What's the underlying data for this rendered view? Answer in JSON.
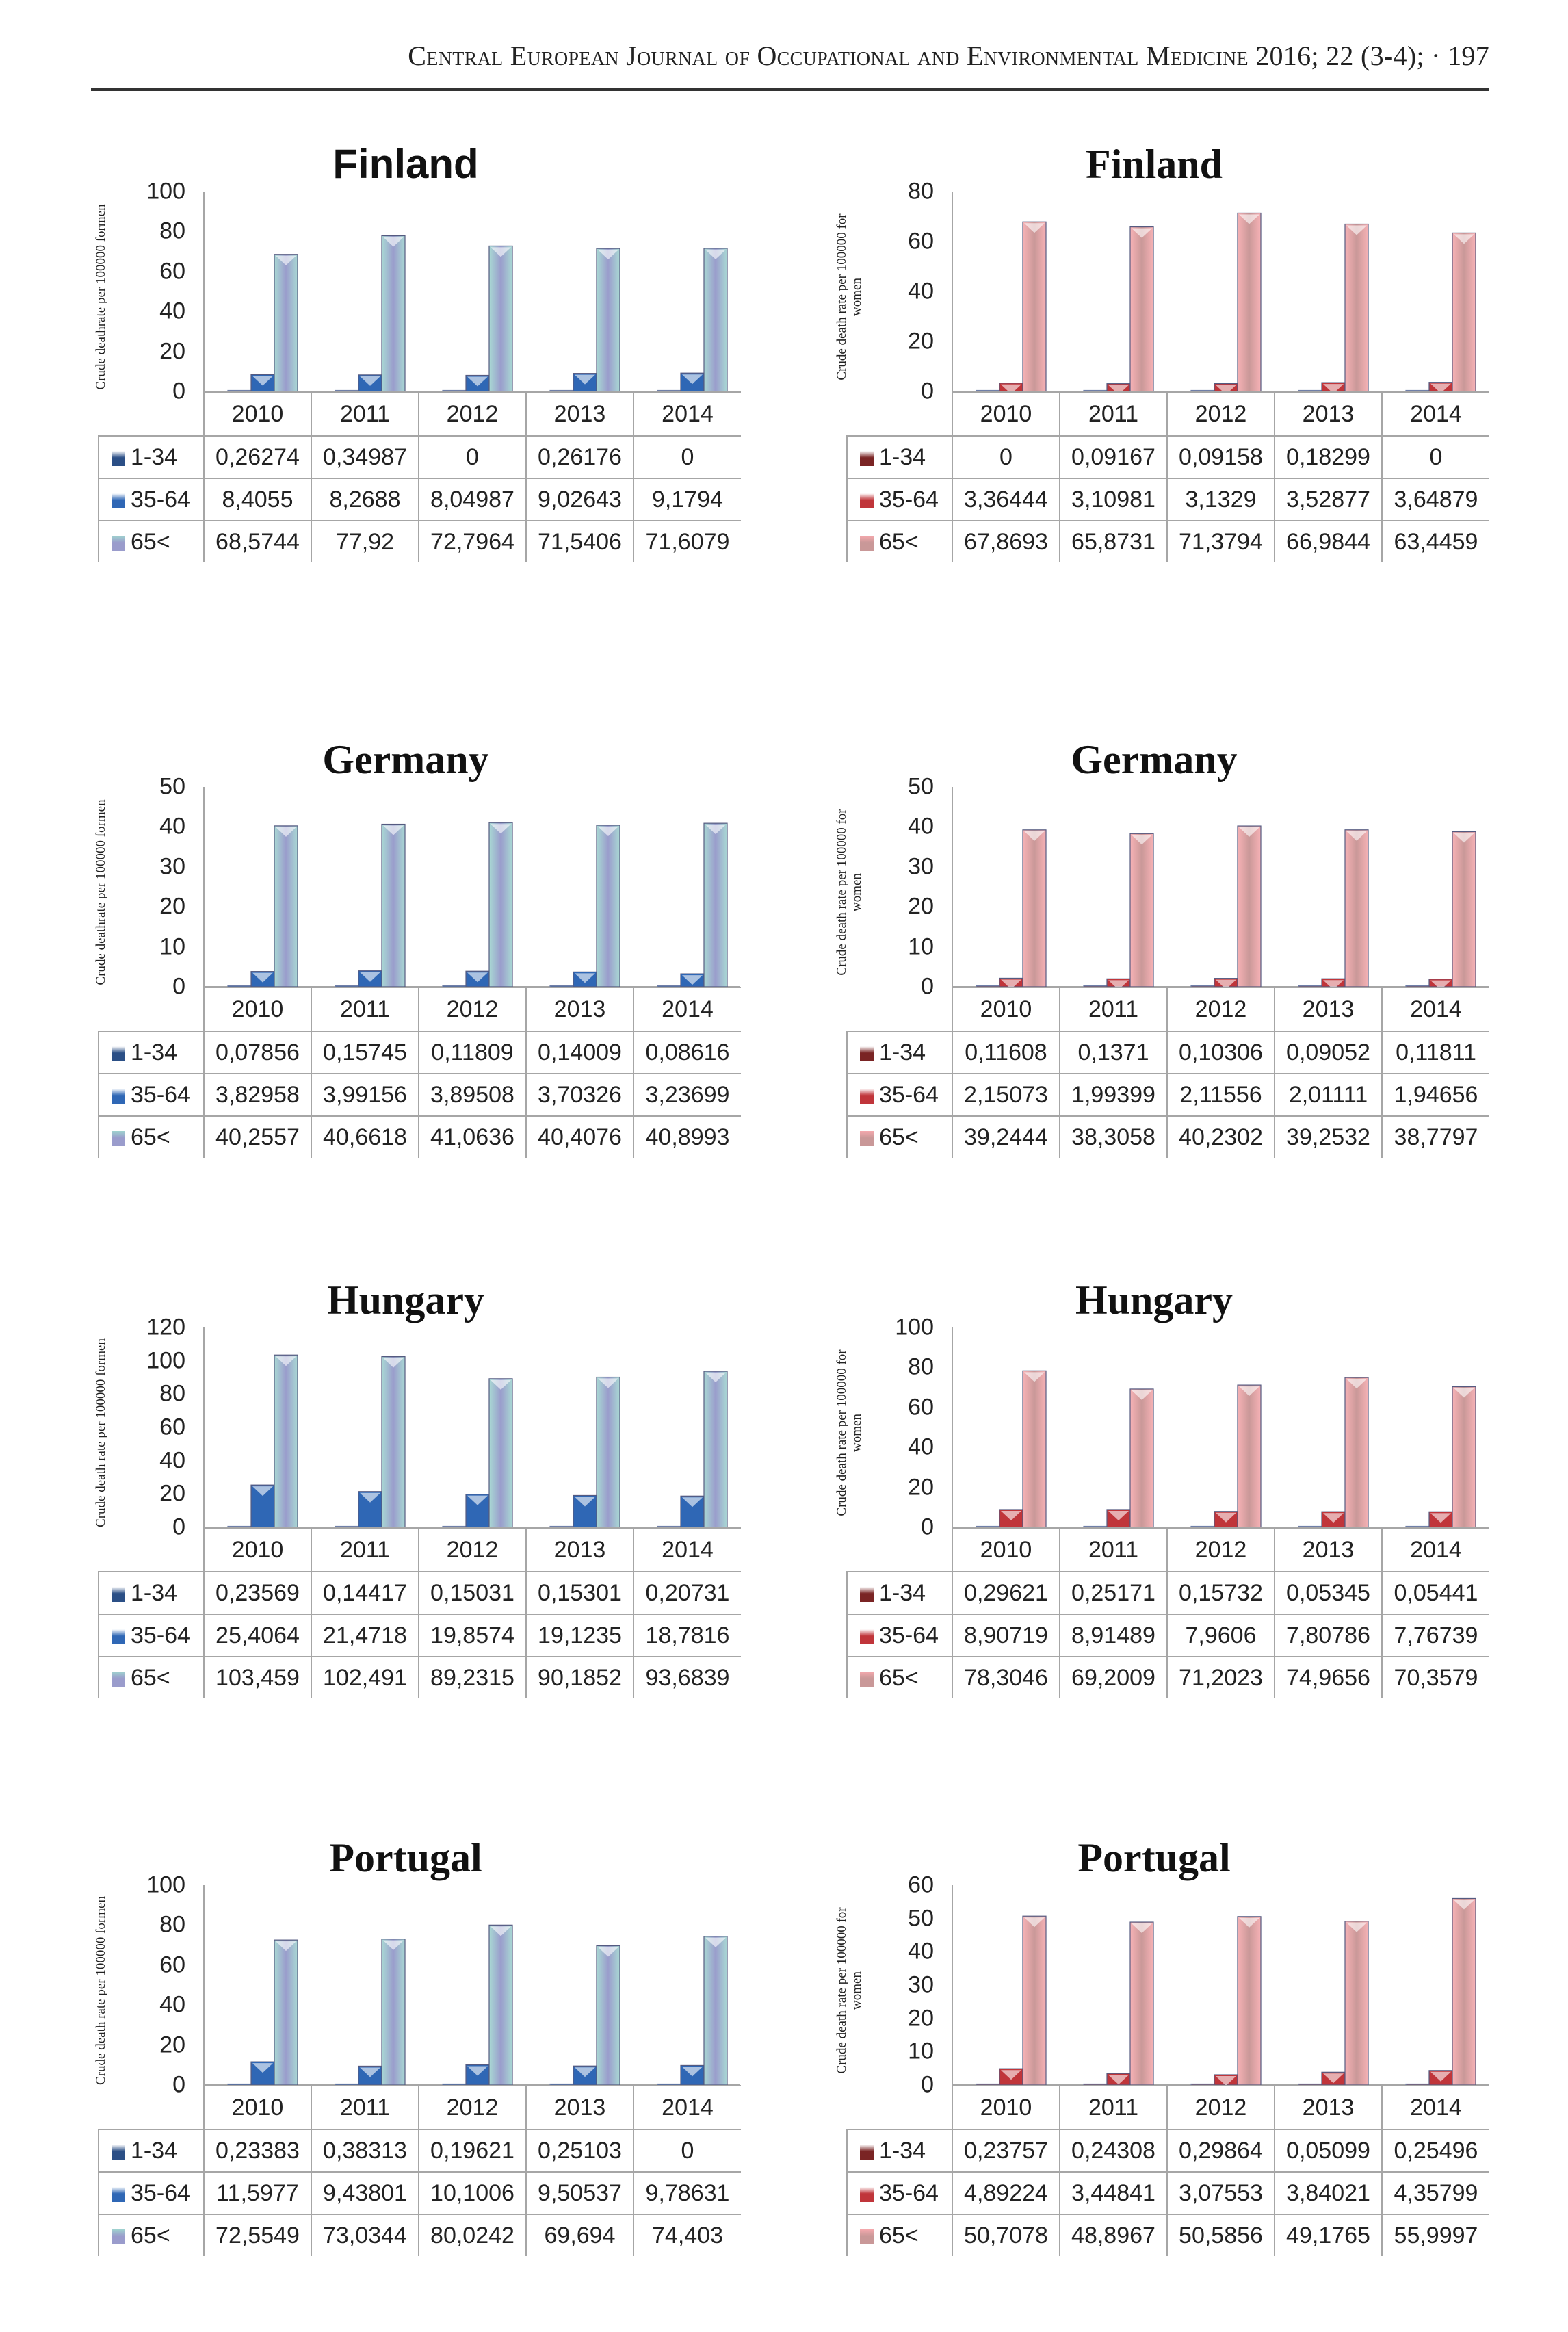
{
  "header": {
    "running_title": "Central European Journal of Occupational and Environmental Medicine 2016; 22 (3-4); · 197"
  },
  "colors": {
    "men_1_34": "#2b4f86",
    "men_35_64": "#2f67b5",
    "men_65": "#9a9ccc",
    "men_65_highlight": "#9fd3cf",
    "women_1_34": "#7a2424",
    "women_35_64": "#c0353a",
    "women_65": "#c99898",
    "women_65_highlight": "#f5a9ad"
  },
  "chart_data": [
    {
      "type": "bar",
      "title": "Finland",
      "xlabel": "",
      "ylabel": "Crude deathrate per 100000 formen",
      "ylim": [
        0,
        100
      ],
      "yticks": [
        0,
        20,
        40,
        60,
        80,
        100
      ],
      "grid": false,
      "legend": "table-bottom",
      "categories": [
        "2010",
        "2011",
        "2012",
        "2013",
        "2014"
      ],
      "palette": "men",
      "series": [
        {
          "name": "1-34",
          "values": [
            0.26274,
            0.34987,
            0,
            0.26176,
            0
          ],
          "labels": [
            "0,26274",
            "0,34987",
            "0",
            "0,26176",
            "0"
          ]
        },
        {
          "name": "35-64",
          "values": [
            8.4055,
            8.2688,
            8.04987,
            9.02643,
            9.1794
          ],
          "labels": [
            "8,4055",
            "8,2688",
            "8,04987",
            "9,02643",
            "9,1794"
          ]
        },
        {
          "name": "65<",
          "values": [
            68.5744,
            77.92,
            72.7964,
            71.5406,
            71.6079
          ],
          "labels": [
            "68,5744",
            "77,92",
            "72,7964",
            "71,5406",
            "71,6079"
          ]
        }
      ]
    },
    {
      "type": "bar",
      "title": "Finland",
      "xlabel": "",
      "ylabel": "Crude death rate per 100000 for women",
      "ylim": [
        0,
        80
      ],
      "yticks": [
        0,
        20,
        40,
        60,
        80
      ],
      "grid": false,
      "legend": "table-bottom",
      "categories": [
        "2010",
        "2011",
        "2012",
        "2013",
        "2014"
      ],
      "palette": "women",
      "series": [
        {
          "name": "1-34",
          "values": [
            0,
            0.09167,
            0.09158,
            0.18299,
            0
          ],
          "labels": [
            "0",
            "0,09167",
            "0,09158",
            "0,18299",
            "0"
          ]
        },
        {
          "name": "35-64",
          "values": [
            3.36444,
            3.10981,
            3.1329,
            3.52877,
            3.64879
          ],
          "labels": [
            "3,36444",
            "3,10981",
            "3,1329",
            "3,52877",
            "3,64879"
          ]
        },
        {
          "name": "65<",
          "values": [
            67.8693,
            65.8731,
            71.3794,
            66.9844,
            63.4459
          ],
          "labels": [
            "67,8693",
            "65,8731",
            "71,3794",
            "66,9844",
            "63,4459"
          ]
        }
      ]
    },
    {
      "type": "bar",
      "title": "Germany",
      "xlabel": "",
      "ylabel": "Crude deathrate per 100000 formen",
      "ylim": [
        0,
        50
      ],
      "yticks": [
        0,
        10,
        20,
        30,
        40,
        50
      ],
      "grid": false,
      "legend": "table-bottom",
      "categories": [
        "2010",
        "2011",
        "2012",
        "2013",
        "2014"
      ],
      "palette": "men",
      "series": [
        {
          "name": "1-34",
          "values": [
            0.07856,
            0.15745,
            0.11809,
            0.14009,
            0.08616
          ],
          "labels": [
            "0,07856",
            "0,15745",
            "0,11809",
            "0,14009",
            "0,08616"
          ]
        },
        {
          "name": "35-64",
          "values": [
            3.82958,
            3.99156,
            3.89508,
            3.70326,
            3.23699
          ],
          "labels": [
            "3,82958",
            "3,99156",
            "3,89508",
            "3,70326",
            "3,23699"
          ]
        },
        {
          "name": "65<",
          "values": [
            40.2557,
            40.6618,
            41.0636,
            40.4076,
            40.8993
          ],
          "labels": [
            "40,2557",
            "40,6618",
            "41,0636",
            "40,4076",
            "40,8993"
          ]
        }
      ]
    },
    {
      "type": "bar",
      "title": "Germany",
      "xlabel": "",
      "ylabel": "Crude death rate per 100000 for women",
      "ylim": [
        0,
        50
      ],
      "yticks": [
        0,
        10,
        20,
        30,
        40,
        50
      ],
      "grid": false,
      "legend": "table-bottom",
      "categories": [
        "2010",
        "2011",
        "2012",
        "2013",
        "2014"
      ],
      "palette": "women",
      "series": [
        {
          "name": "1-34",
          "values": [
            0.11608,
            0.1371,
            0.10306,
            0.09052,
            0.11811
          ],
          "labels": [
            "0,11608",
            "0,1371",
            "0,10306",
            "0,09052",
            "0,11811"
          ]
        },
        {
          "name": "35-64",
          "values": [
            2.15073,
            1.99399,
            2.11556,
            2.01111,
            1.94656
          ],
          "labels": [
            "2,15073",
            "1,99399",
            "2,11556",
            "2,01111",
            "1,94656"
          ]
        },
        {
          "name": "65<",
          "values": [
            39.2444,
            38.3058,
            40.2302,
            39.2532,
            38.7797
          ],
          "labels": [
            "39,2444",
            "38,3058",
            "40,2302",
            "39,2532",
            "38,7797"
          ]
        }
      ]
    },
    {
      "type": "bar",
      "title": "Hungary",
      "xlabel": "",
      "ylabel": "Crude death rate per 100000 formen",
      "ylim": [
        0,
        120
      ],
      "yticks": [
        0,
        20,
        40,
        60,
        80,
        100,
        120
      ],
      "grid": false,
      "legend": "table-bottom",
      "categories": [
        "2010",
        "2011",
        "2012",
        "2013",
        "2014"
      ],
      "palette": "men",
      "series": [
        {
          "name": "1-34",
          "values": [
            0.23569,
            0.14417,
            0.15031,
            0.15301,
            0.20731
          ],
          "labels": [
            "0,23569",
            "0,14417",
            "0,15031",
            "0,15301",
            "0,20731"
          ]
        },
        {
          "name": "35-64",
          "values": [
            25.4064,
            21.4718,
            19.8574,
            19.1235,
            18.7816
          ],
          "labels": [
            "25,4064",
            "21,4718",
            "19,8574",
            "19,1235",
            "18,7816"
          ]
        },
        {
          "name": "65<",
          "values": [
            103.459,
            102.491,
            89.2315,
            90.1852,
            93.6839
          ],
          "labels": [
            "103,459",
            "102,491",
            "89,2315",
            "90,1852",
            "93,6839"
          ]
        }
      ]
    },
    {
      "type": "bar",
      "title": "Hungary",
      "xlabel": "",
      "ylabel": "Crude death rate per 100000 for women",
      "ylim": [
        0,
        100
      ],
      "yticks": [
        0,
        20,
        40,
        60,
        80,
        100
      ],
      "grid": false,
      "legend": "table-bottom",
      "categories": [
        "2010",
        "2011",
        "2012",
        "2013",
        "2014"
      ],
      "palette": "women",
      "series": [
        {
          "name": "1-34",
          "values": [
            0.29621,
            0.25171,
            0.15732,
            0.05345,
            0.05441
          ],
          "labels": [
            "0,29621",
            "0,25171",
            "0,15732",
            "0,05345",
            "0,05441"
          ]
        },
        {
          "name": "35-64",
          "values": [
            8.90719,
            8.91489,
            7.9606,
            7.80786,
            7.76739
          ],
          "labels": [
            "8,90719",
            "8,91489",
            "7,9606",
            "7,80786",
            "7,76739"
          ]
        },
        {
          "name": "65<",
          "values": [
            78.3046,
            69.2009,
            71.2023,
            74.9656,
            70.3579
          ],
          "labels": [
            "78,3046",
            "69,2009",
            "71,2023",
            "74,9656",
            "70,3579"
          ]
        }
      ]
    },
    {
      "type": "bar",
      "title": "Portugal",
      "xlabel": "",
      "ylabel": "Crude death rate per 100000 formen",
      "ylim": [
        0,
        100
      ],
      "yticks": [
        0,
        20,
        40,
        60,
        80,
        100
      ],
      "grid": false,
      "legend": "table-bottom",
      "categories": [
        "2010",
        "2011",
        "2012",
        "2013",
        "2014"
      ],
      "palette": "men",
      "series": [
        {
          "name": "1-34",
          "values": [
            0.23383,
            0.38313,
            0.19621,
            0.25103,
            0
          ],
          "labels": [
            "0,23383",
            "0,38313",
            "0,19621",
            "0,25103",
            "0"
          ]
        },
        {
          "name": "35-64",
          "values": [
            11.5977,
            9.43801,
            10.1006,
            9.50537,
            9.78631
          ],
          "labels": [
            "11,5977",
            "9,43801",
            "10,1006",
            "9,50537",
            "9,78631"
          ]
        },
        {
          "name": "65<",
          "values": [
            72.5549,
            73.0344,
            80.0242,
            69.694,
            74.403
          ],
          "labels": [
            "72,5549",
            "73,0344",
            "80,0242",
            "69,694",
            "74,403"
          ]
        }
      ]
    },
    {
      "type": "bar",
      "title": "Portugal",
      "xlabel": "",
      "ylabel": "Crude death rate per 100000 for women",
      "ylim": [
        0,
        60
      ],
      "yticks": [
        0,
        10,
        20,
        30,
        40,
        50,
        60
      ],
      "grid": false,
      "legend": "table-bottom",
      "categories": [
        "2010",
        "2011",
        "2012",
        "2013",
        "2014"
      ],
      "palette": "women",
      "series": [
        {
          "name": "1-34",
          "values": [
            0.23757,
            0.24308,
            0.29864,
            0.05099,
            0.25496
          ],
          "labels": [
            "0,23757",
            "0,24308",
            "0,29864",
            "0,05099",
            "0,25496"
          ]
        },
        {
          "name": "35-64",
          "values": [
            4.89224,
            3.44841,
            3.07553,
            3.84021,
            4.35799
          ],
          "labels": [
            "4,89224",
            "3,44841",
            "3,07553",
            "3,84021",
            "4,35799"
          ]
        },
        {
          "name": "65<",
          "values": [
            50.7078,
            48.8967,
            50.5856,
            49.1765,
            55.9997
          ],
          "labels": [
            "50,7078",
            "48,8967",
            "50,5856",
            "49,1765",
            "55,9997"
          ]
        }
      ]
    }
  ]
}
